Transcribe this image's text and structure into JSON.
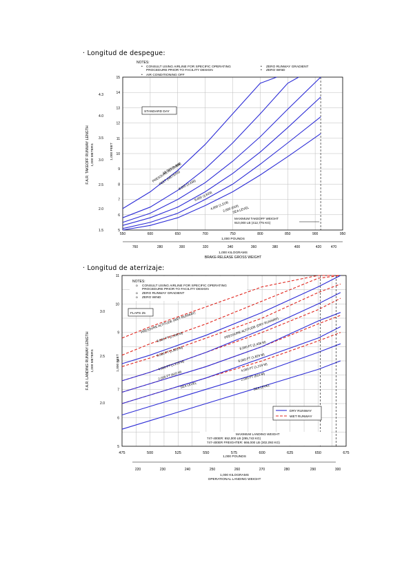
{
  "headings": {
    "takeoff": "· Longitud de despegue:",
    "landing": "· Longitud de aterrizaje:"
  },
  "colors": {
    "curve": "#2b2bd6",
    "wet": "#e0241c",
    "axis": "#000000"
  },
  "chart_data": [
    {
      "type": "line",
      "notes_title": "NOTES:",
      "notes": [
        "CONSULT USING AIRLINE FOR SPECIFIC OPERATING",
        "PROCEDURE PRIOR TO FACILITY DESIGN",
        "AIR CONDITIONING OFF",
        "ZERO RUNWAY GRADIENT",
        "ZERO WIND"
      ],
      "box_label": "STANDARD DAY",
      "xlabel_primary": "1,000 POUNDS",
      "xlabel_secondary": "1,000 KILOGRAMS",
      "xlabel_main": "BRAKE-RELEASE GROSS WEIGHT",
      "ylabel_left": "F.A.R. TAKEOFF RUNWAY LENGTH",
      "ylabel_left_sub": "1,000 METERS",
      "ylabel_right": "1,000 FEET",
      "x_ticks": [
        "550",
        "600",
        "650",
        "700",
        "750",
        "800",
        "850",
        "900",
        "950"
      ],
      "x2_ticks": [
        "760",
        "280",
        "300",
        "320",
        "340",
        "360",
        "380",
        "400",
        "420",
        "470"
      ],
      "y_ticks": [
        "5",
        "6",
        "7",
        "8",
        "9",
        "10",
        "11",
        "12",
        "13",
        "14",
        "15"
      ],
      "y2_ticks": [
        "1.5",
        "2.0",
        "2.5",
        "3.0",
        "3.5",
        "4.0",
        "4.3"
      ],
      "xlim": [
        550,
        950
      ],
      "ylim": [
        5,
        15
      ],
      "annotation_label": "PRESSURE ALTITUDE",
      "annotation_sublabel": "FEET (METERS)",
      "max_weight_label": "MAXIMUM TAKEOFF WEIGHT",
      "max_weight_value": "910,000 LB (412,775 KG)",
      "max_weight_x": 910,
      "series": [
        {
          "name": "10,000 (3,048)",
          "x": [
            550,
            600,
            650,
            700,
            750,
            800,
            830
          ],
          "y": [
            6.4,
            7.5,
            8.9,
            10.6,
            12.6,
            14.6,
            15.0
          ]
        },
        {
          "name": "8,000 (2,438)",
          "x": [
            550,
            600,
            650,
            700,
            750,
            800,
            850,
            870
          ],
          "y": [
            5.8,
            6.5,
            7.6,
            9.0,
            10.7,
            12.6,
            14.6,
            15.0
          ]
        },
        {
          "name": "6,000 (1,829)",
          "x": [
            550,
            600,
            650,
            700,
            750,
            800,
            850,
            910
          ],
          "y": [
            5.5,
            6.1,
            7.0,
            8.1,
            9.5,
            11.1,
            12.9,
            15.0
          ]
        },
        {
          "name": "4,000 (1,219)",
          "x": [
            550,
            600,
            650,
            700,
            750,
            800,
            850,
            910
          ],
          "y": [
            5.3,
            5.8,
            6.5,
            7.5,
            8.7,
            10.1,
            11.7,
            13.7
          ]
        },
        {
          "name": "2,000 (610)",
          "x": [
            550,
            600,
            650,
            700,
            750,
            800,
            850,
            910
          ],
          "y": [
            5.1,
            5.5,
            6.1,
            7.0,
            8.0,
            9.3,
            10.7,
            12.4
          ]
        },
        {
          "name": "SEA LEVEL",
          "x": [
            550,
            600,
            650,
            700,
            750,
            800,
            850,
            910
          ],
          "y": [
            5.0,
            5.3,
            5.8,
            6.6,
            7.5,
            8.6,
            9.8,
            11.3
          ]
        }
      ]
    },
    {
      "type": "line",
      "notes_title": "NOTES:",
      "notes": [
        "CONSULT USING AIRLINE FOR SPECIFIC OPERATING",
        "PROCEDURE PRIOR TO FACILITY DESIGN",
        "ZERO RUNWAY GRADIENT",
        "ZERO WIND"
      ],
      "box_label": "FLAPS 25",
      "xlabel_primary": "1,000 POUNDS",
      "xlabel_secondary": "1,000 KILOGRAMS",
      "xlabel_main": "OPERATIONAL LANDING WEIGHT",
      "ylabel_left": "F.A.R. LANDING RUNWAY LENGTH",
      "ylabel_left_sub": "1,000 METERS",
      "ylabel_right": "1,000 FEET",
      "x_ticks": [
        "475",
        "500",
        "525",
        "550",
        "575",
        "600",
        "625",
        "650",
        "675"
      ],
      "x2_ticks": [
        "220",
        "230",
        "240",
        "250",
        "260",
        "270",
        "280",
        "290",
        "300"
      ],
      "y_ticks": [
        "5",
        "6",
        "7",
        "8",
        "9",
        "10",
        "11"
      ],
      "y2_ticks": [
        "2.0",
        "2.5",
        "3.0"
      ],
      "xlim": [
        475,
        675
      ],
      "ylim": [
        5,
        11
      ],
      "annotation_dry": "PRESSURE ALTITUDE",
      "annotation_wet": "PRESSURE ALTITUDE (WET RUNWAY)",
      "annotation_dry_top": "PRESSURE ALTITUDE (DRY RUNWAY)",
      "legend": [
        "DRY RUNWAY",
        "WET RUNWAY"
      ],
      "max_weight_label": "MAXIMUM LANDING WEIGHT",
      "max_weight_line1": "747-400ER: 652,000 LB (295,743 KG)",
      "max_weight_line2": "747-400ER FREIGHTER: 666,000 LB (302,093 KG)",
      "max_weight_x": [
        652,
        666
      ],
      "dry_series": [
        {
          "name": "10,000 FT (3,048 M)",
          "x": [
            475,
            500,
            550,
            600,
            650,
            670
          ],
          "y": [
            7.9,
            8.2,
            8.9,
            9.7,
            10.6,
            11.0
          ]
        },
        {
          "name": "8,000 FT (2,438 M)",
          "x": [
            475,
            500,
            550,
            600,
            650,
            670
          ],
          "y": [
            7.3,
            7.6,
            8.3,
            9.1,
            10.0,
            10.4
          ]
        },
        {
          "name": "6,000 FT (1,829 M)",
          "x": [
            475,
            500,
            550,
            600,
            650,
            670
          ],
          "y": [
            6.9,
            7.2,
            7.8,
            8.5,
            9.4,
            9.7
          ]
        },
        {
          "name": "4,000 FT (1,219 M)",
          "x": [
            475,
            500,
            550,
            600,
            650,
            670
          ],
          "y": [
            6.5,
            6.8,
            7.4,
            8.1,
            8.8,
            9.2
          ]
        },
        {
          "name": "2,000 FT (610 M)",
          "x": [
            475,
            500,
            550,
            600,
            650,
            670
          ],
          "y": [
            6.1,
            6.4,
            7.0,
            7.6,
            8.3,
            8.6
          ]
        },
        {
          "name": "SEA LEVEL",
          "x": [
            475,
            500,
            550,
            600,
            650,
            670
          ],
          "y": [
            5.6,
            5.9,
            6.5,
            7.1,
            7.7,
            8.0
          ]
        }
      ],
      "wet_series": [
        {
          "name": "10,000 FT (3,048 M)",
          "x": [
            475,
            500,
            550,
            600,
            650,
            670
          ],
          "y": [
            8.8,
            9.2,
            9.9,
            10.6,
            11.0,
            11.0
          ]
        },
        {
          "name": "8,000 FT (2,438 M)",
          "x": [
            475,
            500,
            550,
            600,
            650,
            670
          ],
          "y": [
            8.2,
            8.6,
            9.3,
            10.1,
            10.9,
            11.0
          ]
        },
        {
          "name": "6,000 FT (1,829 M)",
          "x": [
            475,
            500,
            550,
            600,
            650,
            670
          ],
          "y": [
            7.8,
            8.1,
            8.8,
            9.5,
            10.4,
            10.7
          ]
        },
        {
          "name": "4,000 FT (1,219 M)",
          "x": [
            475,
            500,
            550,
            600,
            650,
            670
          ],
          "y": [
            7.3,
            7.6,
            8.3,
            9.0,
            9.8,
            10.2
          ]
        },
        {
          "name": "2,000 FT (610 M)",
          "x": [
            475,
            500,
            550,
            600,
            650,
            670
          ],
          "y": [
            6.9,
            7.2,
            7.8,
            8.5,
            9.3,
            9.6
          ]
        },
        {
          "name": "SEA LEVEL",
          "x": [
            475,
            500,
            550,
            600,
            650,
            670
          ],
          "y": [
            6.5,
            6.8,
            7.4,
            8.0,
            8.7,
            9.0
          ]
        }
      ]
    }
  ]
}
